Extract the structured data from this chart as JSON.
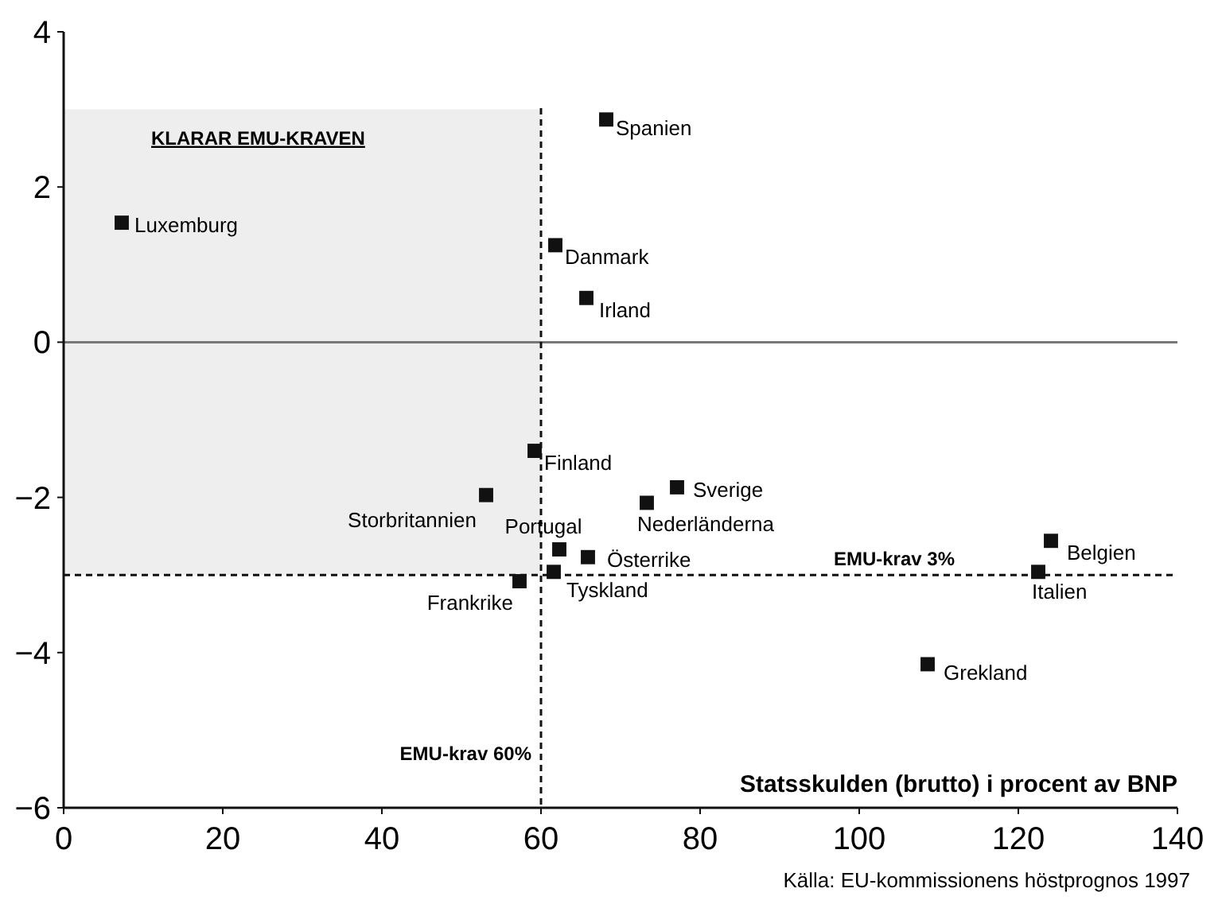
{
  "chart_data": {
    "type": "scatter",
    "xlabel": "Statsskulden (brutto) i procent av BNP",
    "x": [
      7.3,
      68.2,
      61.8,
      65.7,
      59.2,
      53.1,
      77.1,
      73.3,
      62.3,
      65.9,
      61.6,
      57.3,
      124.1,
      122.5,
      108.6
    ],
    "series": [
      {
        "color": "#111111",
        "values": [
          1.54,
          2.87,
          1.25,
          0.57,
          -1.4,
          -1.97,
          -1.87,
          -2.07,
          -2.67,
          -2.77,
          -2.96,
          -3.08,
          -2.56,
          -2.96,
          -4.15
        ]
      }
    ],
    "marker": "square",
    "grid": false,
    "xlim": [
      0,
      140
    ],
    "xticks": [
      0,
      20,
      40,
      60,
      80,
      100,
      120,
      140
    ],
    "ylim": [
      -6,
      4
    ],
    "yticks": [
      -6,
      -4,
      -2,
      0,
      2,
      4
    ],
    "bands": [
      {
        "axis": "y",
        "from": -3,
        "to": 3,
        "label": "KLARAR EMU-KRAVEN",
        "color": "#eeeeee"
      }
    ],
    "ref_lines": [
      {
        "axis": "y",
        "value": 0,
        "color": "#777777",
        "line_style": "solid"
      },
      {
        "axis": "x",
        "value": 60,
        "label": "EMU-krav 60%",
        "color": "#111111",
        "line_style": "dashed"
      },
      {
        "axis": "y",
        "value": -3,
        "label": "EMU-krav 3%",
        "color": "#111111",
        "line_style": "dashed"
      }
    ],
    "annotations": [
      {
        "text": "Luxemburg",
        "x": 7.3,
        "y": 1.54
      },
      {
        "text": "Spanien",
        "x": 68.2,
        "y": 2.87
      },
      {
        "text": "Danmark",
        "x": 61.8,
        "y": 1.25
      },
      {
        "text": "Irland",
        "x": 65.7,
        "y": 0.57
      },
      {
        "text": "Finland",
        "x": 59.2,
        "y": -1.4
      },
      {
        "text": "Storbritannien",
        "x": 53.1,
        "y": -1.97
      },
      {
        "text": "Sverige",
        "x": 77.1,
        "y": -1.87
      },
      {
        "text": "Nederländerna",
        "x": 73.3,
        "y": -2.07
      },
      {
        "text": "Portugal",
        "x": 62.3,
        "y": -2.67
      },
      {
        "text": "Österrike",
        "x": 65.9,
        "y": -2.77
      },
      {
        "text": "Tyskland",
        "x": 61.6,
        "y": -2.96
      },
      {
        "text": "Frankrike",
        "x": 57.3,
        "y": -3.08
      },
      {
        "text": "Belgien",
        "x": 124.1,
        "y": -2.56
      },
      {
        "text": "Italien",
        "x": 122.5,
        "y": -2.96
      },
      {
        "text": "Grekland",
        "x": 108.6,
        "y": -4.15
      },
      "Källa: EU-kommissionens höstprognos 1997"
    ]
  }
}
